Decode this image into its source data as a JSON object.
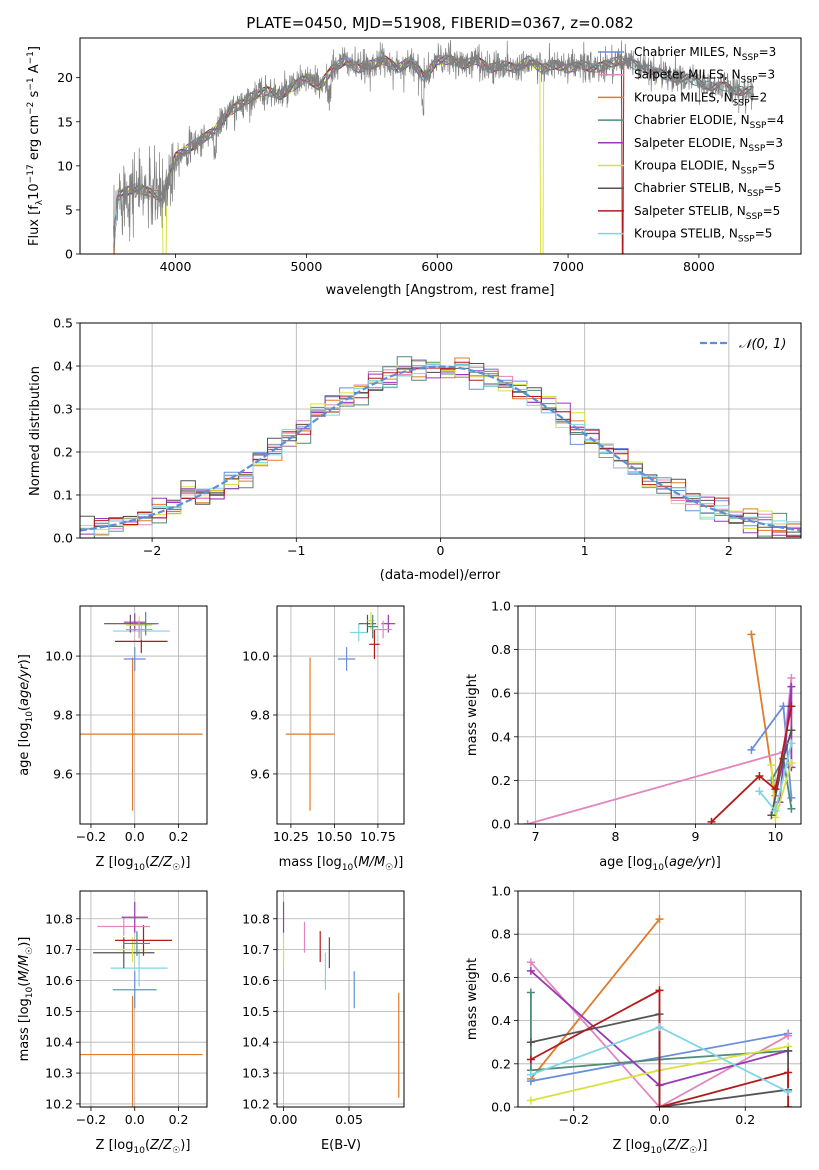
{
  "chart_data": [
    {
      "id": "spectrum",
      "type": "line",
      "title": "PLATE=0450, MJD=51908, FIBERID=0367, z=0.082",
      "xlabel": "wavelength [Angstrom, rest frame]",
      "ylabel": "Flux [f_λ10^-17 erg cm^-2 s^-1 A^-1]",
      "xlim": [
        3270,
        8780
      ],
      "ylim": [
        0,
        24.5
      ],
      "xticks": [
        4000,
        5000,
        6000,
        7000,
        8000
      ],
      "yticks": [
        0,
        5,
        10,
        15,
        20
      ],
      "data_envelope": {
        "x": [
          3520,
          3560,
          3600,
          3700,
          3800,
          3900,
          4000,
          4100,
          4200,
          4300,
          4400,
          4500,
          4600,
          4700,
          4800,
          4900,
          5000,
          5100,
          5200,
          5300,
          5400,
          5500,
          5600,
          5700,
          5800,
          5900,
          6000,
          6100,
          6200,
          6300,
          6400,
          6500,
          6600,
          6700,
          6800,
          6900,
          7000,
          7100,
          7200,
          7300,
          7400,
          7500,
          7600,
          7700,
          7800,
          7900,
          8000,
          8100,
          8200,
          8300,
          8400
        ],
        "y": [
          0,
          6.5,
          7,
          7.5,
          7,
          6.5,
          11,
          12,
          13,
          14,
          16,
          17,
          18,
          18.5,
          18,
          19,
          20,
          19,
          21,
          22,
          21,
          21.5,
          22,
          21,
          22,
          20,
          22,
          22,
          21.5,
          22,
          21,
          21.5,
          21,
          22,
          21,
          21.5,
          21,
          21.5,
          21,
          21.5,
          22,
          21.5,
          21,
          20.5,
          20,
          20,
          19.5,
          19,
          19,
          18.5,
          18.5
        ]
      },
      "notes": "Observed spectrum (grey) overlaid with 9 SSP model fits; several models drop to 0 near 3520, 3920, 6800 and 7420 Angstrom."
    },
    {
      "id": "residuals",
      "type": "line",
      "xlabel": "(data-model)/error",
      "ylabel": "Normed distribution",
      "xlim": [
        -2.5,
        2.5
      ],
      "ylim": [
        0,
        0.5
      ],
      "xticks": [
        -2,
        -1,
        0,
        1,
        2
      ],
      "yticks": [
        0.0,
        0.1,
        0.2,
        0.3,
        0.4,
        0.5
      ],
      "reference_curve": "𝒩(0, 1)",
      "bin_width": 0.1,
      "notes": "Step histograms of normalized residuals for each model, with a dashed standard normal reference."
    },
    {
      "id": "age_vs_Z",
      "type": "scatter",
      "xlabel": "Z [log10(Z/Z☉)]",
      "ylabel": "age  [log10(age/yr)]",
      "xlim": [
        -0.25,
        0.33
      ],
      "ylim": [
        9.43,
        10.17
      ],
      "xticks": [
        -0.2,
        0.0,
        0.2
      ],
      "yticks": [
        9.6,
        9.8,
        10.0
      ],
      "points": [
        {
          "model": "Kroupa MILES",
          "x": -0.01,
          "xerr": 0.32,
          "y": 9.735,
          "yerr": 0.26
        },
        {
          "model": "Chabrier MILES",
          "x": 0.0,
          "xerr": 0.05,
          "y": 9.99,
          "yerr": 0.04
        },
        {
          "model": "Salpeter STELIB",
          "x": 0.03,
          "xerr": 0.12,
          "y": 10.05,
          "yerr": 0.04
        },
        {
          "model": "Kroupa STELIB",
          "x": 0.03,
          "xerr": 0.13,
          "y": 10.085,
          "yerr": 0.03
        },
        {
          "model": "Chabrier STELIB",
          "x": -0.02,
          "xerr": 0.12,
          "y": 10.11,
          "yerr": 0.03
        },
        {
          "model": "Salpeter ELODIE",
          "x": 0.0,
          "xerr": 0.05,
          "y": 10.115,
          "yerr": 0.03
        },
        {
          "model": "Kroupa ELODIE",
          "x": 0.02,
          "xerr": 0.06,
          "y": 10.105,
          "yerr": 0.03
        },
        {
          "model": "Chabrier ELODIE",
          "x": 0.05,
          "xerr": 0.06,
          "y": 10.11,
          "yerr": 0.04
        },
        {
          "model": "Salpeter MILES",
          "x": 0.02,
          "xerr": 0.06,
          "y": 10.09,
          "yerr": 0.03
        }
      ]
    },
    {
      "id": "age_vs_mass",
      "type": "scatter",
      "xlabel": "mass [log10(M/M☉)]",
      "ylabel": "",
      "xlim": [
        10.17,
        10.9
      ],
      "ylim": [
        9.43,
        10.17
      ],
      "xticks": [
        10.25,
        10.5,
        10.75
      ],
      "yticks": [
        9.6,
        9.8,
        10.0
      ],
      "points": [
        {
          "model": "Kroupa MILES",
          "x": 10.36,
          "xerr": 0.14,
          "y": 9.735,
          "yerr": 0.26
        },
        {
          "model": "Chabrier MILES",
          "x": 10.57,
          "xerr": 0.05,
          "y": 9.99,
          "yerr": 0.04
        },
        {
          "model": "Salpeter STELIB",
          "x": 10.73,
          "xerr": 0.03,
          "y": 10.04,
          "yerr": 0.05
        },
        {
          "model": "Kroupa STELIB",
          "x": 10.64,
          "xerr": 0.05,
          "y": 10.08,
          "yerr": 0.03
        },
        {
          "model": "Chabrier STELIB",
          "x": 10.69,
          "xerr": 0.05,
          "y": 10.11,
          "yerr": 0.03
        },
        {
          "model": "Salpeter ELODIE",
          "x": 10.81,
          "xerr": 0.04,
          "y": 10.11,
          "yerr": 0.03
        },
        {
          "model": "Kroupa ELODIE",
          "x": 10.71,
          "xerr": 0.02,
          "y": 10.12,
          "yerr": 0.03
        },
        {
          "model": "Chabrier ELODIE",
          "x": 10.72,
          "xerr": 0.03,
          "y": 10.1,
          "yerr": 0.04
        },
        {
          "model": "Salpeter MILES",
          "x": 10.78,
          "xerr": 0.05,
          "y": 10.09,
          "yerr": 0.03
        }
      ]
    },
    {
      "id": "weight_vs_age",
      "type": "line",
      "xlabel": "age  [log10(age/yr)]",
      "ylabel": "mass weight",
      "xlim": [
        6.78,
        10.32
      ],
      "ylim": [
        0,
        1
      ],
      "xticks": [
        7,
        8,
        9,
        10
      ],
      "yticks": [
        0.0,
        0.2,
        0.4,
        0.6,
        0.8,
        1.0
      ],
      "series": [
        {
          "model": "Kroupa MILES",
          "x": [
            9.7,
            10.0
          ],
          "y": [
            0.87,
            0.13
          ]
        },
        {
          "model": "Chabrier MILES",
          "x": [
            9.7,
            10.1,
            10.2
          ],
          "y": [
            0.34,
            0.54,
            0.12
          ]
        },
        {
          "model": "Salpeter MILES",
          "x": [
            6.9,
            10.1,
            10.2
          ],
          "y": [
            0.0,
            0.33,
            0.67
          ]
        },
        {
          "model": "Chabrier ELODIE",
          "x": [
            9.95,
            10.1,
            10.2
          ],
          "y": [
            0.2,
            0.3,
            0.07
          ]
        },
        {
          "model": "Salpeter ELODIE",
          "x": [
            10.05,
            10.2,
            10.2
          ],
          "y": [
            0.1,
            0.63,
            0.26
          ]
        },
        {
          "model": "Kroupa ELODIE",
          "x": [
            9.95,
            10.0,
            10.2
          ],
          "y": [
            0.27,
            0.03,
            0.28
          ]
        },
        {
          "model": "Chabrier STELIB",
          "x": [
            9.95,
            10.1,
            10.2
          ],
          "y": [
            0.04,
            0.3,
            0.43
          ]
        },
        {
          "model": "Salpeter STELIB",
          "x": [
            9.2,
            9.8,
            10.0,
            10.2
          ],
          "y": [
            0.01,
            0.22,
            0.16,
            0.54
          ]
        },
        {
          "model": "Kroupa STELIB",
          "x": [
            9.8,
            10.0,
            10.2
          ],
          "y": [
            0.15,
            0.06,
            0.37
          ]
        }
      ]
    },
    {
      "id": "mass_vs_Z",
      "type": "scatter",
      "xlabel": "Z [log10(Z/Z☉)]",
      "ylabel": "mass [log10(M/M☉)]",
      "xlim": [
        -0.25,
        0.33
      ],
      "ylim": [
        10.19,
        10.89
      ],
      "xticks": [
        -0.2,
        0.0,
        0.2
      ],
      "yticks": [
        10.2,
        10.3,
        10.4,
        10.5,
        10.6,
        10.7,
        10.8
      ],
      "points": [
        {
          "model": "Kroupa MILES",
          "x": -0.01,
          "xerr": 0.32,
          "y": 10.36,
          "yerr": 0.19
        },
        {
          "model": "Chabrier MILES",
          "x": 0.0,
          "xerr": 0.1,
          "y": 10.57,
          "yerr": 0.06
        },
        {
          "model": "Kroupa STELIB",
          "x": 0.02,
          "xerr": 0.13,
          "y": 10.64,
          "yerr": 0.06
        },
        {
          "model": "Chabrier STELIB",
          "x": -0.05,
          "xerr": 0.14,
          "y": 10.69,
          "yerr": 0.05
        },
        {
          "model": "Kroupa ELODIE",
          "x": -0.01,
          "xerr": 0.07,
          "y": 10.7,
          "yerr": 0.04
        },
        {
          "model": "Salpeter STELIB",
          "x": 0.04,
          "xerr": 0.13,
          "y": 10.73,
          "yerr": 0.05
        },
        {
          "model": "Salpeter MILES",
          "x": -0.05,
          "xerr": 0.12,
          "y": 10.775,
          "yerr": 0.03
        },
        {
          "model": "Salpeter ELODIE",
          "x": 0.0,
          "xerr": 0.06,
          "y": 10.805,
          "yerr": 0.05
        },
        {
          "model": "Chabrier ELODIE",
          "x": 0.01,
          "xerr": 0.06,
          "y": 10.72,
          "yerr": 0.04
        }
      ]
    },
    {
      "id": "mass_vs_EBV",
      "type": "scatter",
      "xlabel": "E(B-V)",
      "ylabel": "",
      "xlim": [
        -0.005,
        0.092
      ],
      "ylim": [
        10.19,
        10.89
      ],
      "xticks": [
        0.0,
        0.05
      ],
      "yticks": [
        10.2,
        10.3,
        10.4,
        10.5,
        10.6,
        10.7,
        10.8
      ],
      "points": [
        {
          "model": "Salpeter ELODIE",
          "x": 0.0,
          "y": 10.805,
          "yerr": 0.05
        },
        {
          "model": "Kroupa ELODIE",
          "x": 0.0,
          "y": 10.7,
          "yerr": 0.04
        },
        {
          "model": "Salpeter MILES",
          "x": 0.016,
          "y": 10.74,
          "yerr": 0.05
        },
        {
          "model": "Salpeter STELIB",
          "x": 0.028,
          "y": 10.71,
          "yerr": 0.05
        },
        {
          "model": "Chabrier STELIB",
          "x": 0.035,
          "y": 10.69,
          "yerr": 0.05
        },
        {
          "model": "Kroupa STELIB",
          "x": 0.032,
          "y": 10.63,
          "yerr": 0.06
        },
        {
          "model": "Chabrier MILES",
          "x": 0.054,
          "y": 10.57,
          "yerr": 0.06
        },
        {
          "model": "Kroupa MILES",
          "x": 0.088,
          "y": 10.39,
          "yerr": 0.17
        }
      ]
    },
    {
      "id": "weight_vs_Z",
      "type": "line",
      "xlabel": "Z [log10(Z/Z☉)]",
      "ylabel": "mass weight",
      "xlim": [
        -0.33,
        0.33
      ],
      "ylim": [
        0,
        1
      ],
      "xticks": [
        -0.2,
        0.0,
        0.2
      ],
      "yticks": [
        0.0,
        0.2,
        0.4,
        0.6,
        0.8,
        1.0
      ],
      "series": [
        {
          "model": "Kroupa MILES",
          "x": [
            -0.3,
            0.0
          ],
          "y": [
            0.13,
            0.87
          ]
        },
        {
          "model": "Chabrier MILES",
          "x": [
            -0.3,
            0.3
          ],
          "y": [
            0.12,
            0.34
          ]
        },
        {
          "model": "Salpeter MILES",
          "x": [
            -0.3,
            0.0,
            0.3
          ],
          "y": [
            0.67,
            0.0,
            0.33
          ]
        },
        {
          "model": "Chabrier ELODIE",
          "x": [
            -0.3,
            -0.3,
            0.0,
            0.3
          ],
          "y": [
            0.53,
            0.17,
            0.22,
            0.26
          ]
        },
        {
          "model": "Salpeter ELODIE",
          "x": [
            -0.3,
            0.0,
            0.3
          ],
          "y": [
            0.63,
            0.1,
            0.26
          ]
        },
        {
          "model": "Kroupa ELODIE",
          "x": [
            -0.3,
            0.0,
            0.3
          ],
          "y": [
            0.03,
            0.17,
            0.28
          ]
        },
        {
          "model": "Chabrier STELIB",
          "x": [
            -0.3,
            0.0,
            0.0,
            0.3,
            0.3
          ],
          "y": [
            0.3,
            0.43,
            0.0,
            0.08,
            0.26
          ]
        },
        {
          "model": "Salpeter STELIB",
          "x": [
            -0.3,
            0.0,
            0.0,
            0.3,
            0.3
          ],
          "y": [
            0.22,
            0.54,
            0.0,
            0.16,
            0.0
          ]
        },
        {
          "model": "Kroupa STELIB",
          "x": [
            -0.3,
            0.0,
            0.3
          ],
          "y": [
            0.15,
            0.37,
            0.07
          ]
        }
      ]
    }
  ],
  "legend": {
    "placement": "top-right",
    "entries": [
      {
        "text": "Chabrier MILES, N",
        "sub": "SSP",
        "tail": "=3",
        "color": "#6a8edb"
      },
      {
        "text": "Salpeter MILES, N",
        "sub": "SSP",
        "tail": "=3",
        "color": "#e186bf"
      },
      {
        "text": "Kroupa MILES, N",
        "sub": "SSP",
        "tail": "=2",
        "color": "#e07b27"
      },
      {
        "text": "Chabrier ELODIE, N",
        "sub": "SSP",
        "tail": "=4",
        "color": "#4f8a7a"
      },
      {
        "text": "Salpeter ELODIE, N",
        "sub": "SSP",
        "tail": "=3",
        "color": "#9a38b5"
      },
      {
        "text": "Kroupa ELODIE, N",
        "sub": "SSP",
        "tail": "=5",
        "color": "#d8e23f"
      },
      {
        "text": "Chabrier STELIB, N",
        "sub": "SSP",
        "tail": "=5",
        "color": "#555555"
      },
      {
        "text": "Salpeter STELIB, N",
        "sub": "SSP",
        "tail": "=5",
        "color": "#b31b1b"
      },
      {
        "text": "Kroupa STELIB, N",
        "sub": "SSP",
        "tail": "=5",
        "color": "#7fd6e3"
      }
    ]
  },
  "normal_label": "𝒩(0, 1)",
  "colors": {
    "Chabrier MILES": "#6a8edb",
    "Salpeter MILES": "#e186bf",
    "Kroupa MILES": "#e07b27",
    "Chabrier ELODIE": "#4f8a7a",
    "Salpeter ELODIE": "#9a38b5",
    "Kroupa ELODIE": "#d8e23f",
    "Chabrier STELIB": "#555555",
    "Salpeter STELIB": "#b31b1b",
    "Kroupa STELIB": "#7fd6e3",
    "data": "#808080",
    "grid": "#b0b0b0",
    "normal": "#5b8fd6"
  }
}
